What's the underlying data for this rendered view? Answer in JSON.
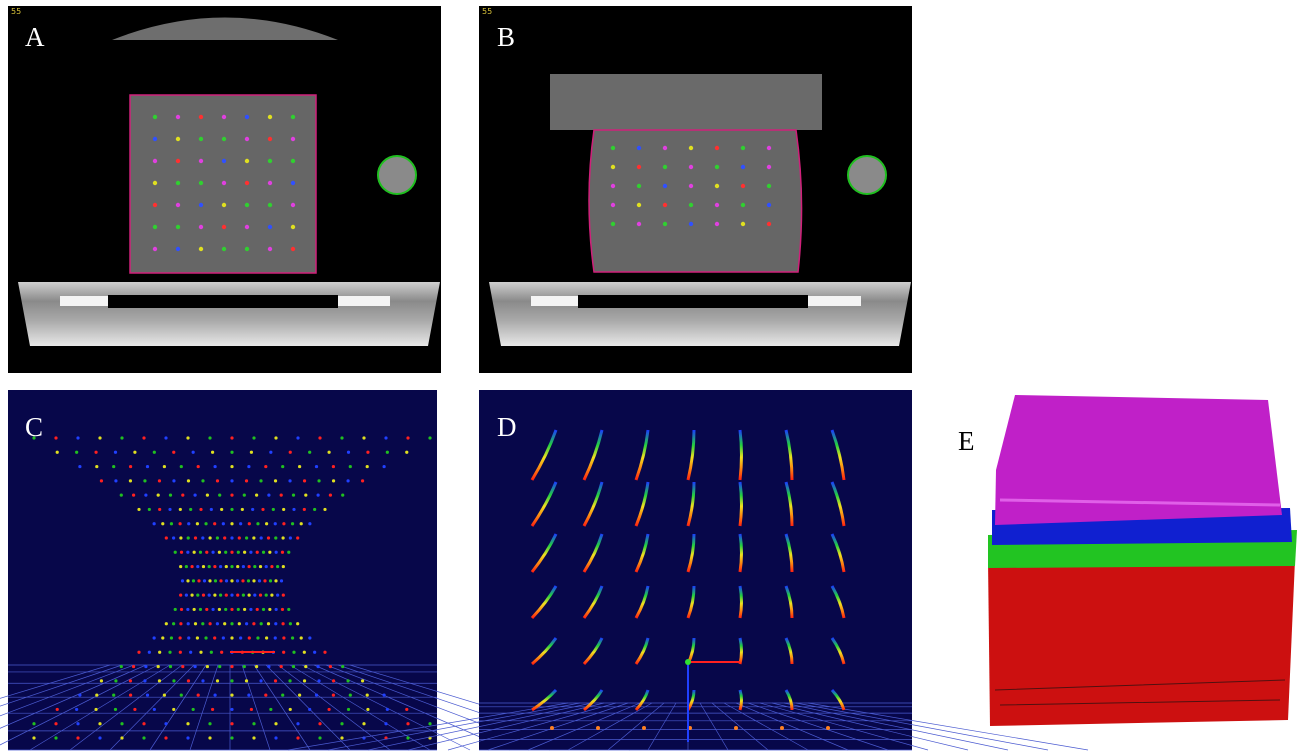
{
  "panels": [
    {
      "label": "A",
      "overlay": "55"
    },
    {
      "label": "B",
      "overlay": "55"
    },
    {
      "label": "C"
    },
    {
      "label": "D"
    },
    {
      "label": "E"
    }
  ]
}
